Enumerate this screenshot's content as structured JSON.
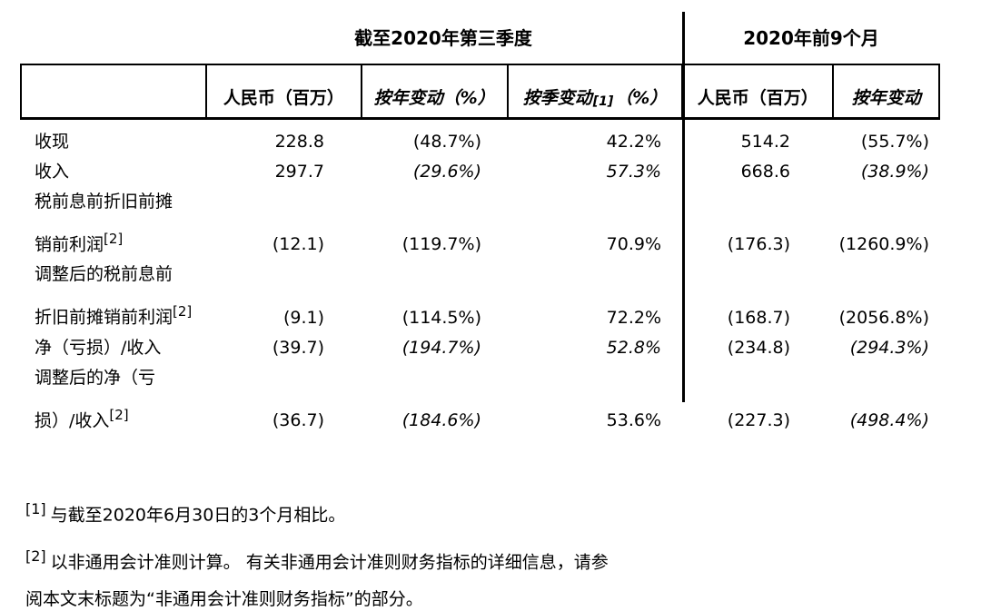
{
  "table": {
    "group_headers": [
      {
        "label": "截至2020年第三季度"
      },
      {
        "label": "2020年前9个月"
      }
    ],
    "columns": [
      {
        "label": ""
      },
      {
        "label": "人民币（百万）"
      },
      {
        "label": "按年变动（%）"
      },
      {
        "label": "按季变动",
        "sup": "[1]",
        "suffix": "（%）"
      },
      {
        "label": "人民币（百万）"
      },
      {
        "label": "按年变动"
      }
    ],
    "rows": [
      {
        "l1": "收现",
        "v": [
          "228.8",
          "(48.7%)",
          "42.2%",
          "514.2",
          "(55.7%)"
        ]
      },
      {
        "l1": "收入",
        "v": [
          "297.7",
          "(29.6%)",
          "57.3%",
          "668.6",
          "(38.9%)"
        ]
      },
      {
        "l1": "税前息前折旧前摊",
        "l2": "销前利润",
        "sup": "[2]",
        "v": [
          "(12.1)",
          "(119.7%)",
          "70.9%",
          "(176.3)",
          "(1260.9%)"
        ]
      },
      {
        "l1": "调整后的税前息前",
        "l2": "折旧前摊销前利润",
        "sup": "[2]",
        "v": [
          "(9.1)",
          "(114.5%)",
          "72.2%",
          "(168.7)",
          "(2056.8%)"
        ]
      },
      {
        "l1": "净（亏损）/收入",
        "v": [
          "(39.7)",
          "(194.7%)",
          "52.8%",
          "(234.8)",
          "(294.3%)"
        ]
      },
      {
        "l1": "调整后的净（亏",
        "l2": "损）/收入",
        "sup": "[2]",
        "v": [
          "(36.7)",
          "(184.6%)",
          "53.6%",
          "(227.3)",
          "(498.4%)"
        ]
      }
    ]
  },
  "footnotes": [
    {
      "marker": "[1]",
      "text": "与截至2020年6月30日的3个月相比。"
    },
    {
      "marker": "[2]",
      "text": "以非通用会计准则计算。 有关非通用会计准则财务指标的详细信息，请参阅本文末标题为“非通用会计准则财务指标”的部分。"
    }
  ]
}
